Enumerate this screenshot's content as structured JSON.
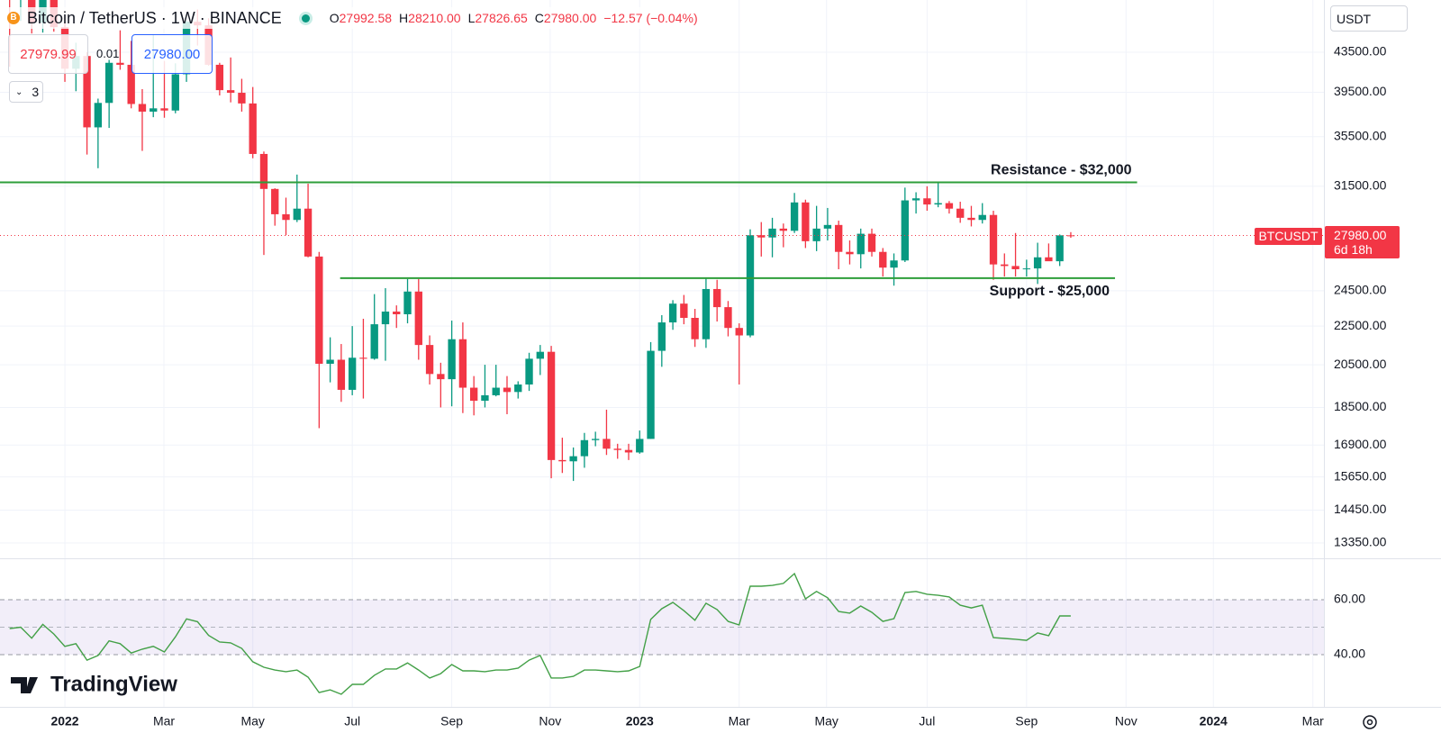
{
  "header": {
    "title": "Bitcoin / TetherUS · 1W · BINANCE",
    "ohlc": [
      {
        "key": "O",
        "value": "27992.58"
      },
      {
        "key": "H",
        "value": "28210.00"
      },
      {
        "key": "L",
        "value": "27826.65"
      },
      {
        "key": "C",
        "value": "27980.00"
      }
    ],
    "change": "−12.57 (−0.04%)",
    "sell": "27979.99",
    "spread": "0.01",
    "buy": "27980.00",
    "indicators": "3",
    "currency": "USDT"
  },
  "price_label": {
    "symbol": "BTCUSDT",
    "price": "27980.00",
    "countdown": "6d 18h"
  },
  "watermark": "TradingView",
  "chart_data": [
    {
      "type": "candlestick",
      "log_scale": true,
      "grid": true,
      "up_color": "#089981",
      "down_color": "#f23645",
      "x": [
        -5,
        -4,
        -3,
        -2,
        -1,
        0,
        1,
        2,
        3,
        4,
        5,
        6,
        7,
        8,
        9,
        10,
        11,
        12,
        13,
        14,
        15,
        16,
        17,
        18,
        19,
        20,
        21,
        22,
        23,
        24,
        25,
        26,
        27,
        28,
        29,
        30,
        31,
        32,
        33,
        34,
        35,
        36,
        37,
        38,
        39,
        40,
        41,
        42,
        43,
        44,
        45,
        46,
        47,
        48,
        49,
        50,
        51,
        52,
        53,
        54,
        55,
        56,
        57,
        58,
        59,
        60,
        61,
        62,
        63,
        64,
        65,
        66,
        67,
        68,
        69,
        70,
        71,
        72,
        73,
        74,
        75,
        76,
        77,
        78,
        79,
        80,
        81,
        82,
        83,
        84,
        85,
        86,
        87,
        88,
        89,
        90,
        91
      ],
      "open": [
        57250,
        49400,
        50100,
        46700,
        50800,
        46200,
        41800,
        43100,
        36300,
        38500,
        42400,
        42200,
        38400,
        37700,
        38000,
        37800,
        41250,
        46800,
        46400,
        42200,
        39700,
        39450,
        38450,
        34050,
        31300,
        29450,
        29050,
        29850,
        26600,
        20550,
        20750,
        19300,
        20850,
        20800,
        22600,
        23300,
        23150,
        24450,
        21500,
        20050,
        19800,
        21800,
        19400,
        18800,
        19050,
        19400,
        19200,
        19550,
        20800,
        21150,
        16300,
        16250,
        16450,
        17100,
        17150,
        16750,
        16700,
        16600,
        17150,
        21200,
        22700,
        23750,
        22950,
        21800,
        24600,
        23550,
        22400,
        22000,
        28000,
        27850,
        28450,
        28300,
        30300,
        27600,
        28450,
        28700,
        26900,
        26750,
        28100,
        26900,
        25900,
        26350,
        30450,
        30600,
        30150,
        30250,
        29850,
        29200,
        29050,
        29400,
        26100,
        26000,
        25800,
        25850,
        26550,
        26300,
        27992.58
      ],
      "high": [
        59050,
        51000,
        50600,
        51800,
        52100,
        47500,
        44500,
        43500,
        38900,
        42700,
        45850,
        44700,
        39800,
        45400,
        42600,
        42350,
        46900,
        48200,
        47200,
        42400,
        42950,
        40800,
        40000,
        34250,
        31350,
        30650,
        32400,
        31700,
        26900,
        21900,
        21550,
        22500,
        22900,
        24300,
        24650,
        23650,
        25200,
        25200,
        22000,
        20600,
        22800,
        22700,
        19950,
        20500,
        20500,
        19950,
        19700,
        21100,
        21500,
        21450,
        17200,
        16800,
        17400,
        17450,
        18400,
        16950,
        16950,
        17500,
        21650,
        23100,
        23950,
        24250,
        23450,
        25250,
        25150,
        23900,
        22650,
        28400,
        28900,
        29200,
        28800,
        31000,
        30500,
        30050,
        29900,
        29000,
        27650,
        28450,
        28450,
        27150,
        26800,
        31400,
        31050,
        31500,
        31800,
        30400,
        30350,
        30050,
        30250,
        29700,
        26800,
        28150,
        26400,
        27500,
        27450,
        28050,
        28210
      ],
      "low": [
        42000,
        46900,
        45500,
        45600,
        45700,
        40500,
        39600,
        34000,
        32900,
        36250,
        41700,
        38000,
        34300,
        37200,
        37150,
        37550,
        40500,
        44200,
        42100,
        39200,
        38550,
        37700,
        33700,
        26700,
        28650,
        28000,
        28900,
        26550,
        17600,
        19650,
        18750,
        19050,
        18900,
        20750,
        20700,
        22400,
        22650,
        20750,
        19550,
        18500,
        18550,
        18250,
        18150,
        18500,
        19000,
        18200,
        18900,
        19250,
        20000,
        15600,
        15800,
        15500,
        16000,
        16850,
        16500,
        16350,
        16300,
        16550,
        17150,
        20400,
        22300,
        22600,
        21400,
        21350,
        22750,
        21950,
        19550,
        21900,
        26600,
        26550,
        27200,
        28150,
        27150,
        26950,
        27650,
        25800,
        26100,
        25850,
        26600,
        25350,
        24800,
        26250,
        29500,
        29700,
        29950,
        29500,
        28850,
        28600,
        28800,
        25150,
        25350,
        25350,
        25350,
        24900,
        26350,
        26000,
        27826.65
      ],
      "close": [
        49400,
        50100,
        46700,
        50800,
        46200,
        41800,
        43100,
        36300,
        38500,
        42400,
        42200,
        38400,
        37700,
        38000,
        37800,
        41250,
        46800,
        46400,
        42200,
        39700,
        39450,
        38450,
        34050,
        31300,
        29450,
        29050,
        29850,
        26600,
        20550,
        20750,
        19300,
        20850,
        20800,
        22600,
        23300,
        23150,
        24450,
        21500,
        20050,
        19800,
        21800,
        19400,
        18800,
        19050,
        19400,
        19200,
        19550,
        20800,
        21150,
        16300,
        16250,
        16450,
        17100,
        17150,
        16750,
        16700,
        16600,
        17150,
        21200,
        22700,
        23750,
        22950,
        21800,
        24600,
        23550,
        22400,
        22000,
        28000,
        27850,
        28450,
        28300,
        30300,
        27600,
        28450,
        28700,
        26900,
        26750,
        28100,
        26900,
        25900,
        26350,
        30450,
        30600,
        30150,
        30250,
        29850,
        29200,
        29050,
        29400,
        26100,
        26000,
        25800,
        25850,
        26550,
        26300,
        27992.58,
        27980
      ],
      "xlim": [
        -5.87,
        113.9
      ],
      "xticks": [
        {
          "value": 0,
          "label": "2022"
        },
        {
          "value": 8.96,
          "label": "Mar"
        },
        {
          "value": 17.0,
          "label": "May"
        },
        {
          "value": 26.0,
          "label": "Jul"
        },
        {
          "value": 35.0,
          "label": "Sep"
        },
        {
          "value": 43.9,
          "label": "Nov"
        },
        {
          "value": 52.0,
          "label": "2023"
        },
        {
          "value": 61.0,
          "label": "Mar"
        },
        {
          "value": 68.9,
          "label": "May"
        },
        {
          "value": 78.0,
          "label": "Jul"
        },
        {
          "value": 87.0,
          "label": "Sep"
        },
        {
          "value": 96.0,
          "label": "Nov"
        },
        {
          "value": 103.9,
          "label": "2024"
        },
        {
          "value": 112.9,
          "label": "Mar"
        }
      ],
      "ylim": [
        12867,
        49320
      ],
      "yticks": [
        {
          "value": 43500,
          "label": "43500.00"
        },
        {
          "value": 39500,
          "label": "39500.00"
        },
        {
          "value": 35500,
          "label": "35500.00"
        },
        {
          "value": 31500,
          "label": "31500.00"
        },
        {
          "value": 24500,
          "label": "24500.00"
        },
        {
          "value": 22500,
          "label": "22500.00"
        },
        {
          "value": 20500,
          "label": "20500.00"
        },
        {
          "value": 18500,
          "label": "18500.00"
        },
        {
          "value": 16900,
          "label": "16900.00"
        },
        {
          "value": 15650,
          "label": "15650.00"
        },
        {
          "value": 14450,
          "label": "14450.00"
        },
        {
          "value": 13350,
          "label": "13350.00"
        }
      ],
      "lines": [
        {
          "label": "Resistance - $32,000",
          "value": 31800,
          "x": [
            -5.87,
            97
          ],
          "color": "#2e9e3a",
          "label_position": "above"
        },
        {
          "label": "Support - $25,000",
          "value": 25250,
          "x": [
            24.9,
            95
          ],
          "color": "#2e9e3a",
          "label_position": "below"
        }
      ]
    },
    {
      "type": "line",
      "color": "#43a047",
      "band_color": "#7e57c2",
      "x": [
        -5,
        -4,
        -3,
        -2,
        -1,
        0,
        1,
        2,
        3,
        4,
        5,
        6,
        7,
        8,
        9,
        10,
        11,
        12,
        13,
        14,
        15,
        16,
        17,
        18,
        19,
        20,
        21,
        22,
        23,
        24,
        25,
        26,
        27,
        28,
        29,
        30,
        31,
        32,
        33,
        34,
        35,
        36,
        37,
        38,
        39,
        40,
        41,
        42,
        43,
        44,
        45,
        46,
        47,
        48,
        49,
        50,
        51,
        52,
        53,
        54,
        55,
        56,
        57,
        58,
        59,
        60,
        61,
        62,
        63,
        64,
        65,
        66,
        67,
        68,
        69,
        70,
        71,
        72,
        73,
        74,
        75,
        76,
        77,
        78,
        79,
        80,
        81,
        82,
        83,
        84,
        85,
        86,
        87,
        88,
        89,
        90,
        91
      ],
      "values": [
        49.5,
        50,
        46,
        51,
        47.5,
        43,
        44,
        38,
        39.7,
        45,
        44,
        40.6,
        42,
        43,
        41,
        46.5,
        53,
        52,
        47,
        44.6,
        44.3,
        42.3,
        37.4,
        35.4,
        34.4,
        33.8,
        34.4,
        31.8,
        26.2,
        27.2,
        25.6,
        29.2,
        29.2,
        32.5,
        34.8,
        34.8,
        37,
        34.4,
        31.5,
        33.1,
        36.4,
        34.1,
        34.1,
        33.8,
        34.4,
        34.4,
        35.1,
        38,
        39.7,
        31.5,
        31.5,
        32.1,
        34.4,
        34.4,
        34.1,
        33.8,
        34.1,
        35.7,
        52.8,
        56.7,
        59,
        56,
        52.5,
        58.7,
        56.4,
        52.1,
        50.8,
        64.9,
        64.9,
        65.2,
        65.9,
        69.5,
        60.3,
        63,
        60.7,
        55.7,
        55.1,
        57.7,
        55.4,
        52.1,
        53.1,
        62.6,
        63,
        62,
        61.6,
        61,
        58,
        57,
        58,
        46.2,
        45.9,
        45.6,
        45.2,
        47.9,
        46.9,
        54.1,
        54.1
      ],
      "xlim": [
        -5.87,
        113.9
      ],
      "ylim": [
        21,
        74.4
      ],
      "yticks": [
        {
          "value": 60,
          "label": "60.00"
        },
        {
          "value": 40,
          "label": "40.00"
        }
      ],
      "midline": 50
    }
  ]
}
